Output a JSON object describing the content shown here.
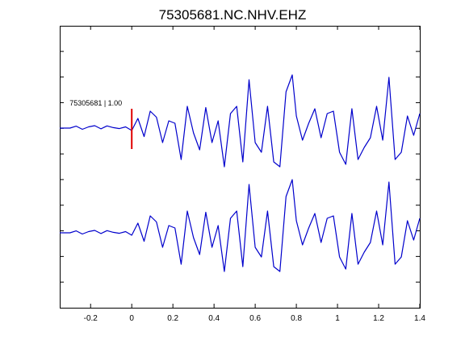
{
  "chart_data": {
    "type": "line",
    "title": "75305681.NC.NHV.EHZ",
    "xlabel": "",
    "ylabel": "",
    "xlim": [
      -0.35,
      1.4
    ],
    "x_ticks": [
      -0.2,
      0,
      0.2,
      0.4,
      0.6,
      0.8,
      1,
      1.2,
      1.4
    ],
    "x_tick_labels": [
      "-0.2",
      "0",
      "0.2",
      "0.4",
      "0.6",
      "0.8",
      "1",
      "1.2",
      "1.4"
    ],
    "grid": false,
    "legend": "none",
    "pick_marker": {
      "x": 0,
      "color": "#e00000"
    },
    "annotation": "75305681 | 1.00",
    "trace_color": "#0000cc",
    "traces": [
      {
        "x": [
          -0.35,
          -0.3,
          -0.27,
          -0.24,
          -0.21,
          -0.18,
          -0.15,
          -0.12,
          -0.09,
          -0.06,
          -0.03,
          0,
          0.03,
          0.06,
          0.09,
          0.12,
          0.15,
          0.18,
          0.21,
          0.24,
          0.27,
          0.3,
          0.33,
          0.36,
          0.39,
          0.42,
          0.45,
          0.48,
          0.51,
          0.54,
          0.57,
          0.6,
          0.63,
          0.66,
          0.69,
          0.72,
          0.75,
          0.78,
          0.8,
          0.83,
          0.86,
          0.89,
          0.92,
          0.95,
          0.98,
          1.01,
          1.04,
          1.07,
          1.1,
          1.13,
          1.16,
          1.19,
          1.22,
          1.25,
          1.28,
          1.31,
          1.34,
          1.37,
          1.4
        ],
        "y": [
          0,
          0,
          0.08,
          -0.05,
          0.05,
          0.1,
          -0.03,
          0.09,
          0.02,
          -0.02,
          0.05,
          -0.1,
          0.4,
          -0.35,
          0.7,
          0.45,
          -0.6,
          0.3,
          0.2,
          -1.3,
          0.9,
          -0.2,
          -0.9,
          0.85,
          -0.6,
          0.3,
          -1.6,
          0.6,
          0.9,
          -1.4,
          2,
          -0.6,
          -1.0,
          0.9,
          -1.4,
          -1.6,
          1.5,
          2.2,
          0.5,
          -0.5,
          0.2,
          0.8,
          -0.4,
          0.6,
          0.7,
          -1.0,
          -1.5,
          0.8,
          -1.3,
          -0.8,
          -0.4,
          0.9,
          -0.5,
          2.1,
          -1.3,
          -1.0,
          0.5,
          -0.3,
          0.6
        ]
      },
      {
        "x": [
          -0.35,
          -0.3,
          -0.27,
          -0.24,
          -0.21,
          -0.18,
          -0.15,
          -0.12,
          -0.09,
          -0.06,
          -0.03,
          0,
          0.03,
          0.06,
          0.09,
          0.12,
          0.15,
          0.18,
          0.21,
          0.24,
          0.27,
          0.3,
          0.33,
          0.36,
          0.39,
          0.42,
          0.45,
          0.48,
          0.51,
          0.54,
          0.57,
          0.6,
          0.63,
          0.66,
          0.69,
          0.72,
          0.75,
          0.78,
          0.8,
          0.83,
          0.86,
          0.89,
          0.92,
          0.95,
          0.98,
          1.01,
          1.04,
          1.07,
          1.1,
          1.13,
          1.16,
          1.19,
          1.22,
          1.25,
          1.28,
          1.31,
          1.34,
          1.37,
          1.4
        ],
        "y": [
          0,
          0,
          0.08,
          -0.05,
          0.05,
          0.1,
          -0.03,
          0.09,
          0.02,
          -0.02,
          0.05,
          -0.1,
          0.4,
          -0.35,
          0.7,
          0.45,
          -0.6,
          0.3,
          0.2,
          -1.3,
          0.9,
          -0.2,
          -0.9,
          0.85,
          -0.6,
          0.3,
          -1.6,
          0.6,
          0.9,
          -1.4,
          2,
          -0.6,
          -1.0,
          0.9,
          -1.4,
          -1.6,
          1.5,
          2.2,
          0.5,
          -0.5,
          0.2,
          0.8,
          -0.4,
          0.6,
          0.7,
          -1.0,
          -1.5,
          0.8,
          -1.3,
          -0.8,
          -0.4,
          0.9,
          -0.5,
          2.1,
          -1.3,
          -1.0,
          0.5,
          -0.3,
          0.6
        ]
      }
    ]
  }
}
